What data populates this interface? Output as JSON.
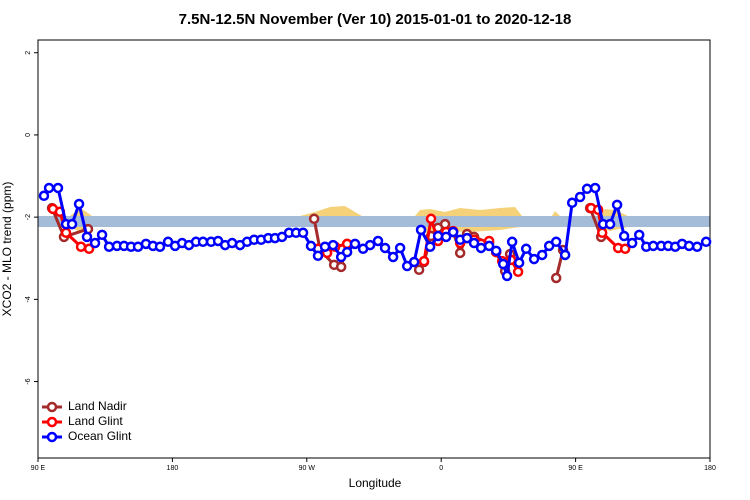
{
  "chart_data": {
    "type": "line",
    "title": "7.5N-12.5N November (Ver 10)   2015-01-01 to 2020-12-18",
    "x_label": "Longitude",
    "y_label": "XCO2 - MLO trend (ppm)",
    "xlim": [
      90,
      540
    ],
    "ylim": [
      -7.86,
      2.31
    ],
    "xticks": [
      {
        "value": 90,
        "label": "90 E"
      },
      {
        "value": 180,
        "label": "180"
      },
      {
        "value": 270,
        "label": "90 W"
      },
      {
        "value": 360,
        "label": "0"
      },
      {
        "value": 450,
        "label": "90 E"
      },
      {
        "value": 540,
        "label": "180"
      }
    ],
    "yticks": [
      -6,
      -4,
      -2,
      0,
      2
    ],
    "legend": "bottom-left",
    "series": [
      {
        "name": "Land Nadir",
        "color": "#a52a2a",
        "x": [
          99.4,
          107.4,
          123.5,
          null,
          274.9,
          278.9,
          288.3,
          293,
          297,
          null,
          345.2,
          348.5,
          353.2,
          357.9,
          362.6,
          368,
          372.7,
          377.3,
          382,
          392.1,
          396.8,
          402.8,
          406.1,
          null,
          437,
          441.6,
          null,
          459.7,
          467.1
        ],
        "values": [
          -1.78,
          -2.48,
          -2.29,
          null,
          -2.04,
          -2.8,
          -3.16,
          -3.21,
          -2.65,
          null,
          -3.28,
          -3.09,
          -2.46,
          -2.26,
          -2.17,
          -2.36,
          -2.87,
          -2.41,
          -2.48,
          -2.63,
          -2.85,
          -3.31,
          -2.9,
          null,
          -3.48,
          -2.8,
          null,
          -1.78,
          -2.48
        ]
      },
      {
        "name": "Land Glint",
        "color": "#ff0000",
        "x": [
          100,
          104.7,
          108.8,
          118.8,
          124.2,
          null,
          277.5,
          283.6,
          289,
          297,
          null,
          348.5,
          353.2,
          357.9,
          363.3,
          368,
          372.7,
          377.3,
          382,
          386.7,
          392.1,
          396.8,
          400.8,
          406.8,
          411.5,
          null,
          460.4,
          465.1,
          467.8,
          478.5,
          483.2
        ],
        "values": [
          -1.8,
          -1.87,
          -2.38,
          -2.72,
          -2.77,
          null,
          -2.77,
          -2.87,
          -2.72,
          -2.65,
          null,
          -3.07,
          -2.04,
          -2.58,
          -2.36,
          -2.34,
          -2.63,
          -2.51,
          -2.55,
          -2.65,
          -2.58,
          -2.85,
          -3.07,
          -3.04,
          -3.33,
          null,
          -1.78,
          -1.82,
          -2.38,
          -2.75,
          -2.77
        ]
      },
      {
        "name": "Ocean Glint",
        "color": "#0000ff",
        "x": [
          94,
          97.4,
          103.4,
          108.8,
          112.8,
          117.5,
          122.8,
          128.2,
          132.9,
          137.6,
          142.9,
          147.6,
          152.3,
          157,
          162.3,
          167,
          171.7,
          177.1,
          181.8,
          186.5,
          191.1,
          195.8,
          200.5,
          205.9,
          210.6,
          215.3,
          220,
          225.3,
          230,
          234.7,
          239.4,
          244.2,
          248.7,
          253.4,
          258.1,
          262.8,
          267.5,
          272.8,
          277.5,
          282.2,
          287.6,
          293,
          297,
          302.3,
          307.7,
          312.4,
          317.7,
          322.4,
          327.8,
          332.5,
          337.2,
          341.9,
          346.5,
          352.6,
          357.9,
          363.3,
          368,
          372.7,
          377.3,
          382,
          386.7,
          392.1,
          396.8,
          401.5,
          404.1,
          407.5,
          412.2,
          416.9,
          422.2,
          427.6,
          432.3,
          437,
          443,
          447.7,
          453,
          457.7,
          463.1,
          468.4,
          473.1,
          477.8,
          482.5,
          487.9,
          492.6,
          497.3,
          502,
          507.3,
          512,
          516.7,
          521.3,
          526,
          531.4,
          537.4
        ],
        "values": [
          -1.48,
          -1.29,
          -1.29,
          -2.17,
          -2.17,
          -1.68,
          -2.48,
          -2.63,
          -2.43,
          -2.72,
          -2.7,
          -2.7,
          -2.72,
          -2.72,
          -2.65,
          -2.7,
          -2.72,
          -2.6,
          -2.7,
          -2.63,
          -2.68,
          -2.6,
          -2.6,
          -2.6,
          -2.58,
          -2.68,
          -2.63,
          -2.68,
          -2.6,
          -2.55,
          -2.55,
          -2.51,
          -2.51,
          -2.48,
          -2.38,
          -2.38,
          -2.38,
          -2.7,
          -2.94,
          -2.72,
          -2.68,
          -2.97,
          -2.85,
          -2.65,
          -2.77,
          -2.68,
          -2.58,
          -2.75,
          -2.97,
          -2.75,
          -3.19,
          -3.09,
          -2.31,
          -2.72,
          -2.46,
          -2.48,
          -2.36,
          -2.55,
          -2.51,
          -2.63,
          -2.75,
          -2.7,
          -2.82,
          -3.14,
          -3.43,
          -2.6,
          -3.11,
          -2.77,
          -3.02,
          -2.92,
          -2.7,
          -2.6,
          -2.92,
          -1.65,
          -1.51,
          -1.31,
          -1.29,
          -2.17,
          -2.17,
          -1.7,
          -2.46,
          -2.63,
          -2.43,
          -2.72,
          -2.7,
          -2.7,
          -2.7,
          -2.72,
          -2.65,
          -2.7,
          -2.72,
          -2.6
        ]
      }
    ]
  }
}
